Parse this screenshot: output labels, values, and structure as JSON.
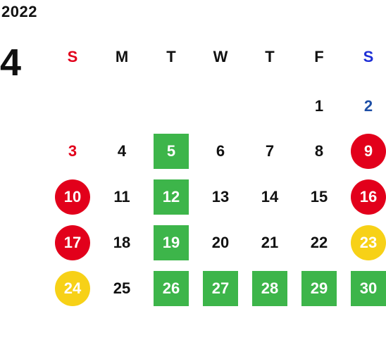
{
  "calendar": {
    "year": "2022",
    "month": "4",
    "weekdays": [
      {
        "label": "S",
        "color": "#e2001b"
      },
      {
        "label": "M",
        "color": "#111111"
      },
      {
        "label": "T",
        "color": "#111111"
      },
      {
        "label": "W",
        "color": "#111111"
      },
      {
        "label": "T",
        "color": "#111111"
      },
      {
        "label": "F",
        "color": "#111111"
      },
      {
        "label": "S",
        "color": "#1e2fd6"
      }
    ],
    "colors": {
      "green": "#3db54a",
      "red": "#e2001b",
      "yellow": "#f7d117",
      "saturday_text": "#1e4fa6"
    },
    "weeks": [
      [
        null,
        null,
        null,
        null,
        null,
        {
          "day": "1",
          "style": "plain"
        },
        {
          "day": "2",
          "style": "sat-text"
        }
      ],
      [
        {
          "day": "3",
          "style": "sun-text"
        },
        {
          "day": "4",
          "style": "plain"
        },
        {
          "day": "5",
          "style": "green"
        },
        {
          "day": "6",
          "style": "plain"
        },
        {
          "day": "7",
          "style": "plain"
        },
        {
          "day": "8",
          "style": "plain"
        },
        {
          "day": "9",
          "style": "red-circle"
        }
      ],
      [
        {
          "day": "10",
          "style": "red-circle"
        },
        {
          "day": "11",
          "style": "plain"
        },
        {
          "day": "12",
          "style": "green"
        },
        {
          "day": "13",
          "style": "plain"
        },
        {
          "day": "14",
          "style": "plain"
        },
        {
          "day": "15",
          "style": "plain"
        },
        {
          "day": "16",
          "style": "red-circle"
        }
      ],
      [
        {
          "day": "17",
          "style": "red-circle"
        },
        {
          "day": "18",
          "style": "plain"
        },
        {
          "day": "19",
          "style": "green"
        },
        {
          "day": "20",
          "style": "plain"
        },
        {
          "day": "21",
          "style": "plain"
        },
        {
          "day": "22",
          "style": "plain"
        },
        {
          "day": "23",
          "style": "yellow-circle"
        }
      ],
      [
        {
          "day": "24",
          "style": "yellow-circle"
        },
        {
          "day": "25",
          "style": "plain"
        },
        {
          "day": "26",
          "style": "green"
        },
        {
          "day": "27",
          "style": "green"
        },
        {
          "day": "28",
          "style": "green"
        },
        {
          "day": "29",
          "style": "green"
        },
        {
          "day": "30",
          "style": "green"
        }
      ]
    ]
  }
}
